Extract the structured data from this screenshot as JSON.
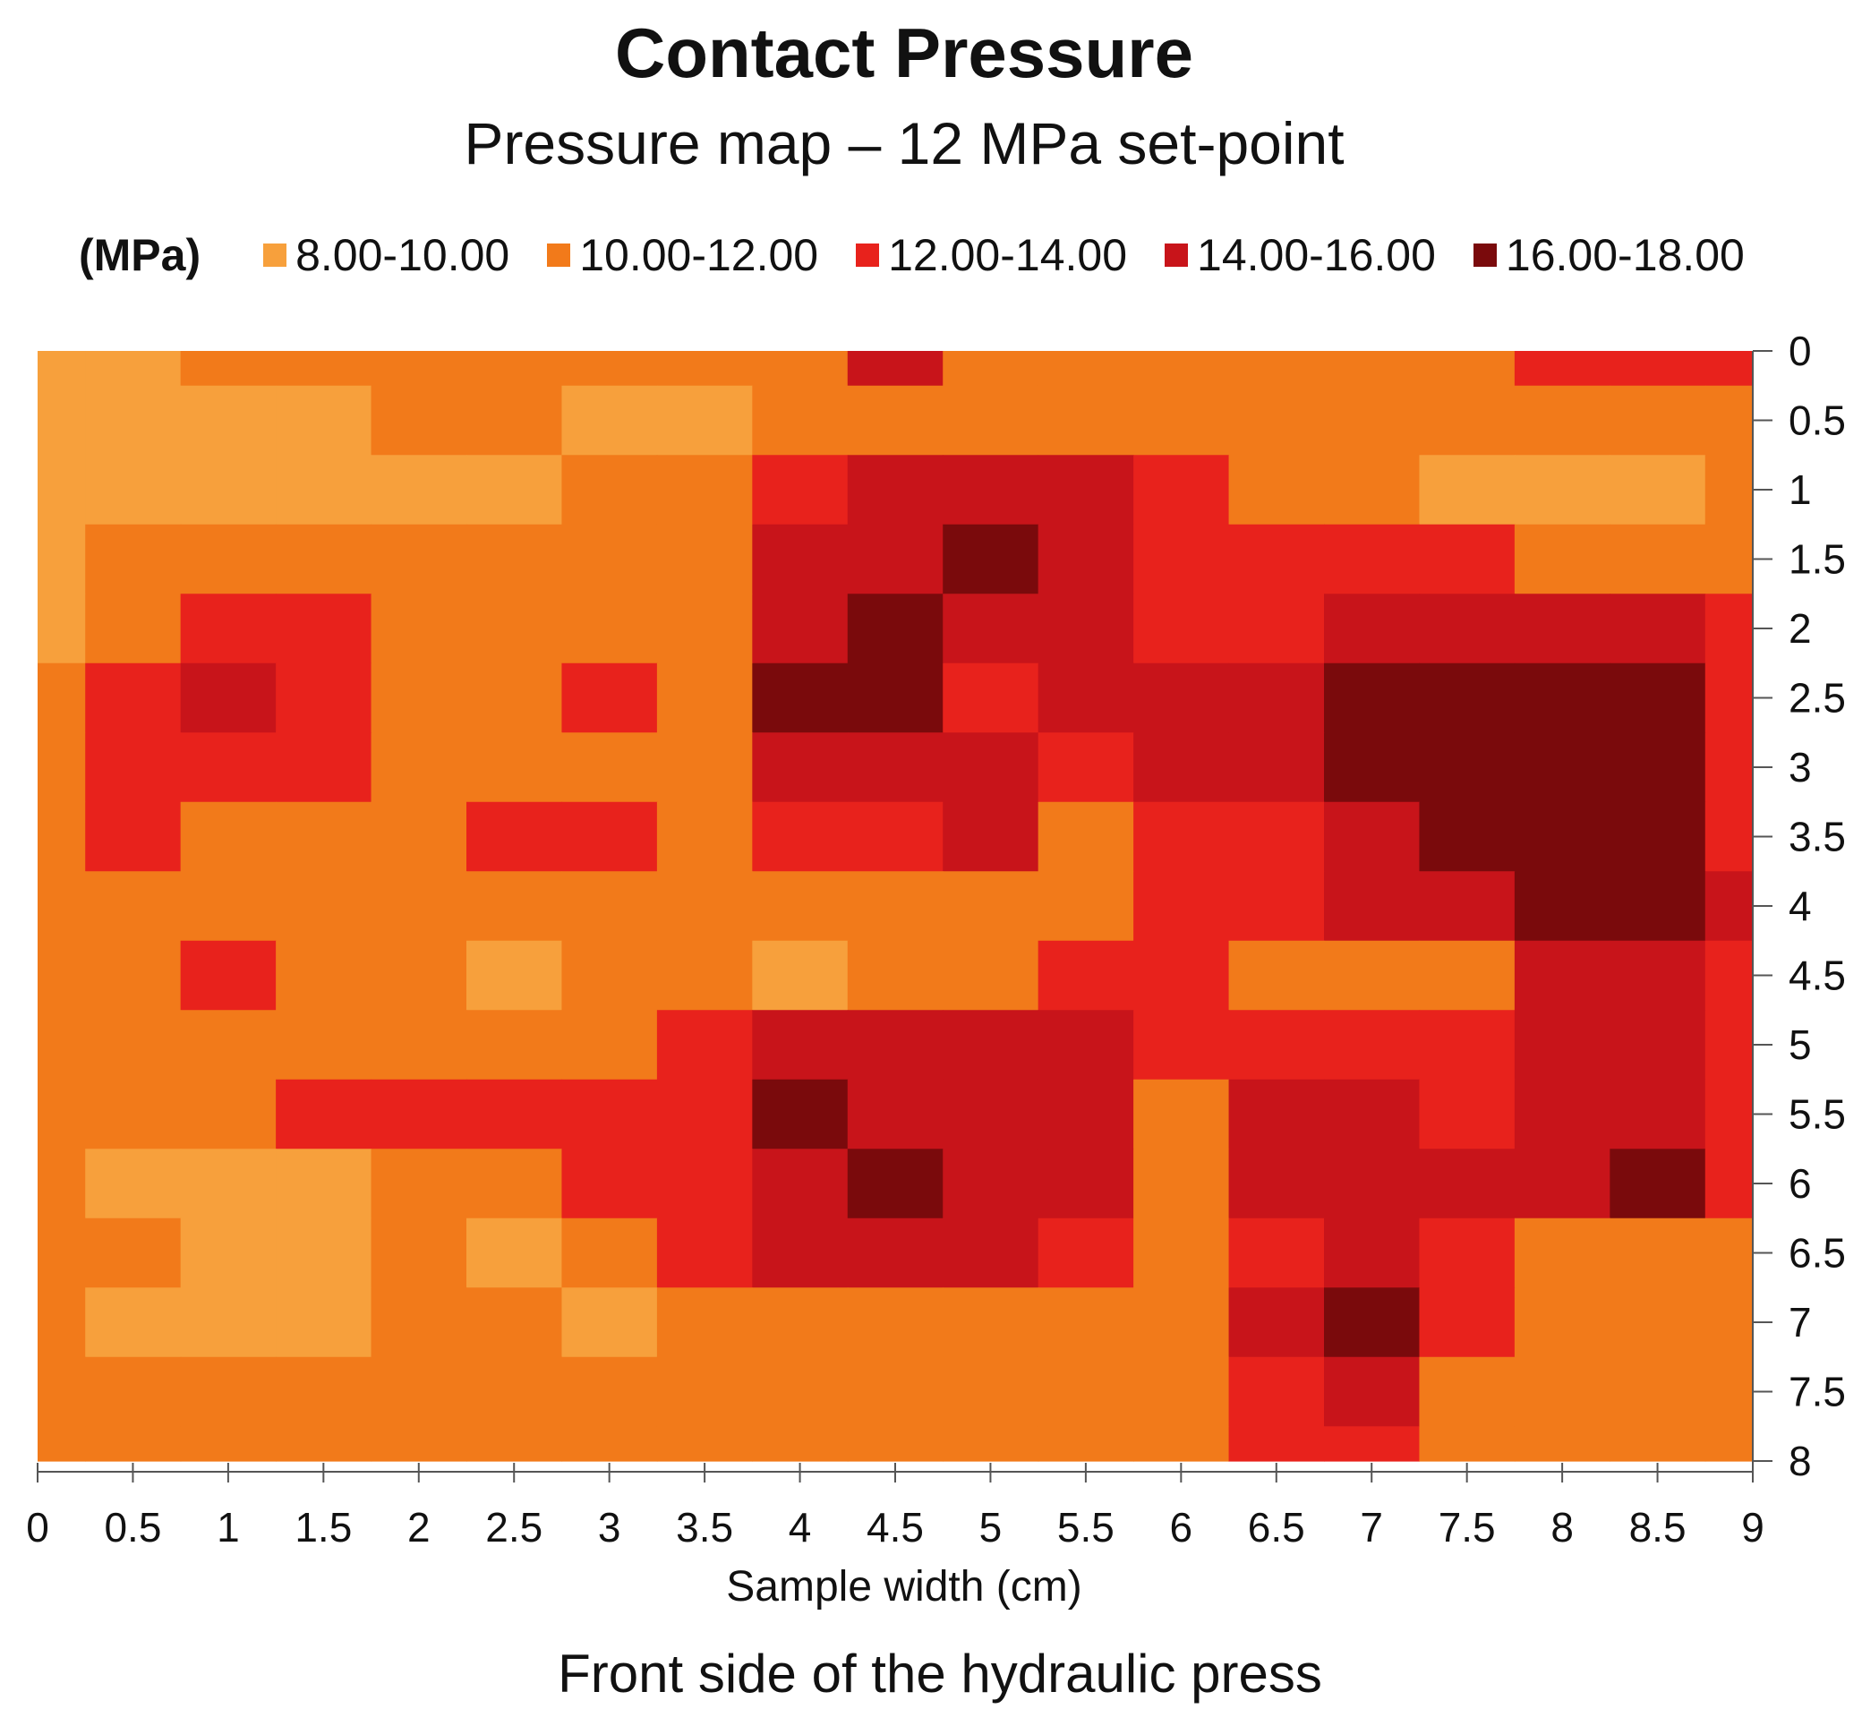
{
  "title": "Contact Pressure",
  "subtitle": "Pressure map – 12 MPa set-point",
  "footer": "Front side of the hydraulic press",
  "chart_data": {
    "type": "heatmap",
    "title": "Contact Pressure",
    "subtitle": "Pressure map – 12 MPa set-point",
    "xlabel": "Sample width (cm)",
    "ylabel": "",
    "xlim": [
      0,
      9
    ],
    "ylim": [
      0,
      8
    ],
    "x_ticks": [
      "0",
      "0.5",
      "1",
      "1.5",
      "2",
      "2.5",
      "3",
      "3.5",
      "4",
      "4.5",
      "5",
      "5.5",
      "6",
      "6.5",
      "7",
      "7.5",
      "8",
      "8.5",
      "9"
    ],
    "y_ticks": [
      "0",
      "0.5",
      "1",
      "1.5",
      "2",
      "2.5",
      "3",
      "3.5",
      "4",
      "4.5",
      "5",
      "5.5",
      "6",
      "6.5",
      "7",
      "7.5",
      "8"
    ],
    "legend_title": "(MPa)",
    "legend_position": "top",
    "bins": [
      {
        "label": "8.00-10.00",
        "min": 8,
        "max": 10,
        "color": "#F7A03C"
      },
      {
        "label": "10.00-12.00",
        "min": 10,
        "max": 12,
        "color": "#F27A1A"
      },
      {
        "label": "12.00-14.00",
        "min": 12,
        "max": 14,
        "color": "#E8221C"
      },
      {
        "label": "14.00-16.00",
        "min": 14,
        "max": 16,
        "color": "#C8141A"
      },
      {
        "label": "16.00-18.00",
        "min": 16,
        "max": 18,
        "color": "#7A0A0C"
      }
    ],
    "x": [
      0,
      0.5,
      1,
      1.5,
      2,
      2.5,
      3,
      3.5,
      4,
      4.5,
      5,
      5.5,
      6,
      6.5,
      7,
      7.5,
      8,
      8.5,
      9
    ],
    "y": [
      0,
      0.5,
      1,
      1.5,
      2,
      2.5,
      3,
      3.5,
      4,
      4.5,
      5,
      5.5,
      6,
      6.5,
      7,
      7.5,
      8
    ],
    "values": [
      [
        9.5,
        9.5,
        10.5,
        10.5,
        10.5,
        11,
        10.5,
        10.5,
        10.5,
        14,
        11,
        11,
        11,
        11,
        10.5,
        10.5,
        13,
        13,
        12.5
      ],
      [
        9,
        9,
        9.5,
        9.5,
        10,
        10,
        9.5,
        9.5,
        10.5,
        11,
        11,
        11,
        11,
        10.5,
        10.5,
        10,
        10.5,
        10.5,
        10.5
      ],
      [
        9,
        9,
        9,
        9,
        9.5,
        9.5,
        10,
        10,
        13,
        15,
        15,
        14,
        13,
        11,
        10.5,
        9.5,
        9.5,
        9.5,
        10
      ],
      [
        9,
        10,
        10.5,
        10,
        10.5,
        10.5,
        10,
        11,
        15,
        15.5,
        16,
        15,
        13,
        13,
        12,
        12,
        10,
        10,
        10
      ],
      [
        9,
        11,
        12.5,
        12,
        10.5,
        10.5,
        10.5,
        11,
        15,
        16.5,
        15.5,
        14.5,
        13,
        13,
        15,
        15,
        15.5,
        15,
        12.5
      ],
      [
        10,
        13,
        14,
        12.5,
        10.5,
        10.5,
        12.5,
        11,
        16.5,
        17,
        13,
        14,
        14,
        15,
        17,
        17,
        17,
        17,
        12.5
      ],
      [
        10,
        13,
        13,
        13,
        10.5,
        10,
        11,
        10.5,
        15.5,
        15.5,
        14.5,
        12.5,
        14,
        15,
        16,
        16.5,
        17,
        17,
        13
      ],
      [
        10.5,
        12.5,
        11,
        10.5,
        10.5,
        13,
        12,
        10.5,
        12,
        13,
        14,
        10.5,
        13,
        13,
        15,
        17,
        17,
        16,
        13
      ],
      [
        11,
        10,
        10.5,
        10,
        10.5,
        11,
        10.5,
        10.5,
        10.5,
        11.5,
        11.5,
        10.5,
        12,
        13,
        14,
        15,
        16,
        16,
        14
      ],
      [
        10.5,
        10,
        13,
        10,
        10,
        9.5,
        10.5,
        10.5,
        9.5,
        11,
        11.5,
        13.5,
        12.5,
        11,
        11,
        11,
        14,
        15,
        13
      ],
      [
        10.5,
        10.5,
        10.5,
        10.5,
        11,
        10.5,
        11,
        13,
        14.5,
        14,
        15,
        14.5,
        12.5,
        12.5,
        12.5,
        13.5,
        15,
        14,
        13
      ],
      [
        10,
        10,
        10.5,
        12.5,
        13.5,
        13,
        13,
        13,
        16.5,
        15,
        14.5,
        14.5,
        11,
        14.5,
        15.5,
        13,
        14,
        15.5,
        13.5
      ],
      [
        10,
        9.5,
        9.5,
        9.5,
        11,
        11,
        13,
        12.5,
        15.5,
        16.5,
        15,
        14.5,
        11,
        15,
        15.5,
        14.5,
        15,
        16,
        13.5
      ],
      [
        10,
        10,
        9.5,
        9.5,
        10,
        9.5,
        10.5,
        12,
        14,
        15,
        14,
        12.5,
        10.5,
        12,
        15,
        12.5,
        11,
        11,
        11
      ],
      [
        10.5,
        9.5,
        9.5,
        9.5,
        10,
        10.5,
        9.5,
        11,
        11,
        11,
        11,
        11,
        10.5,
        14,
        16.5,
        13.5,
        11.5,
        10.5,
        11
      ],
      [
        11,
        10.5,
        10,
        10,
        10.5,
        10.5,
        11,
        11,
        11,
        11,
        11,
        11,
        10.5,
        13,
        14,
        11,
        10.5,
        10.5,
        10.5
      ],
      [
        10.5,
        10.5,
        10.5,
        10.5,
        10.5,
        10.5,
        10.5,
        10.5,
        10.5,
        10.5,
        10.5,
        10.5,
        10.5,
        13,
        13.5,
        11,
        10.5,
        10.5,
        10.5
      ]
    ]
  }
}
